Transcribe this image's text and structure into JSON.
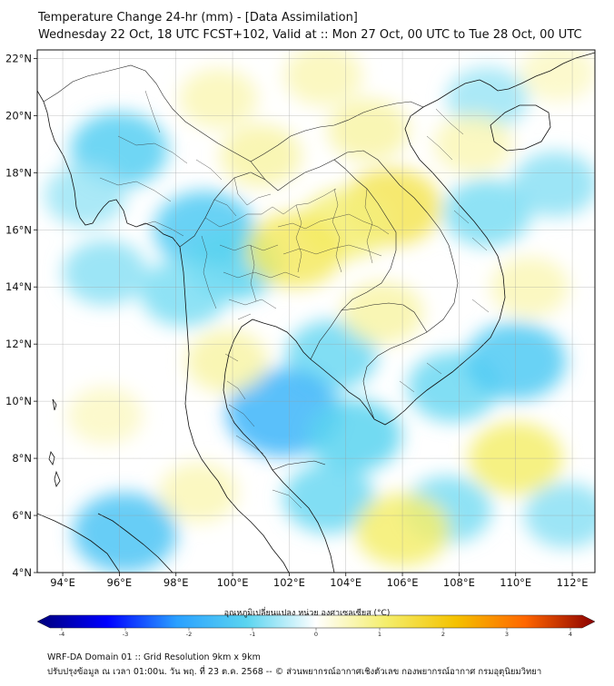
{
  "header": {
    "title": "Temperature Change 24-hr (mm) - [Data Assimilation]",
    "subtitle": "Wednesday 22 Oct, 18 UTC FCST+102, Valid at :: Mon 27 Oct, 00 UTC to Tue 28 Oct, 00 UTC"
  },
  "axes": {
    "lat_labels": [
      "22°N",
      "20°N",
      "18°N",
      "16°N",
      "14°N",
      "12°N",
      "10°N",
      "8°N",
      "6°N",
      "4°N"
    ],
    "lon_labels": [
      "94°E",
      "96°E",
      "98°E",
      "100°E",
      "102°E",
      "104°E",
      "106°E",
      "108°E",
      "110°E",
      "112°E"
    ],
    "lat_range": [
      4,
      22.3
    ],
    "lon_range": [
      93.1,
      112.8
    ]
  },
  "colorbar": {
    "label": "อุณหภูมิเปลี่ยนแปลง หน่วย องศาเซลเซียส (°C)",
    "ticks": [
      "-4",
      "-3",
      "-2",
      "-1",
      "0",
      "1",
      "2",
      "3",
      "4"
    ],
    "min": -4,
    "max": 4,
    "colors": [
      "#00007a",
      "#0000ff",
      "#2aa0ff",
      "#5ad4f0",
      "#ffffff",
      "#f4ee6c",
      "#f4c200",
      "#ff6600",
      "#8b0000"
    ]
  },
  "footer": {
    "line1": "WRF-DA Domain 01 :: Grid Resolution 9km x 9km",
    "line2": "ปรับปรุงข้อมูล ณ เวลา 01:00น. วัน พฤ. ที่ 23 ต.ค. 2568 -- © ส่วนพยากรณ์อากาศเชิงตัวเลข กองพยากรณ์อากาศ กรมอุตุนิยมวิทยา"
  },
  "field_blobs": [
    {
      "lon": 96.0,
      "lat": 18.8,
      "v": -1.1
    },
    {
      "lon": 94.8,
      "lat": 17.2,
      "v": -0.6
    },
    {
      "lon": 95.5,
      "lat": 14.5,
      "v": -0.7
    },
    {
      "lon": 99.0,
      "lat": 16.0,
      "v": -1.2
    },
    {
      "lon": 100.0,
      "lat": 14.8,
      "v": -1.0
    },
    {
      "lon": 98.3,
      "lat": 13.8,
      "v": -0.8
    },
    {
      "lon": 103.5,
      "lat": 11.6,
      "v": -0.9
    },
    {
      "lon": 101.8,
      "lat": 9.6,
      "v": -1.6
    },
    {
      "lon": 104.3,
      "lat": 8.8,
      "v": -1.0
    },
    {
      "lon": 107.8,
      "lat": 10.5,
      "v": -0.9
    },
    {
      "lon": 110.0,
      "lat": 11.4,
      "v": -1.2
    },
    {
      "lon": 109.0,
      "lat": 16.6,
      "v": -0.8
    },
    {
      "lon": 111.4,
      "lat": 17.6,
      "v": -0.7
    },
    {
      "lon": 109.0,
      "lat": 20.6,
      "v": -0.6
    },
    {
      "lon": 96.2,
      "lat": 5.4,
      "v": -1.3
    },
    {
      "lon": 103.4,
      "lat": 6.6,
      "v": -0.9
    },
    {
      "lon": 107.6,
      "lat": 6.2,
      "v": -0.8
    },
    {
      "lon": 111.8,
      "lat": 6.0,
      "v": -0.7
    },
    {
      "lon": 105.6,
      "lat": 16.8,
      "v": 1.2
    },
    {
      "lon": 104.0,
      "lat": 16.2,
      "v": 0.9
    },
    {
      "lon": 102.2,
      "lat": 15.3,
      "v": 1.1
    },
    {
      "lon": 101.0,
      "lat": 18.6,
      "v": 0.6
    },
    {
      "lon": 104.8,
      "lat": 19.5,
      "v": 0.6
    },
    {
      "lon": 103.2,
      "lat": 21.4,
      "v": 0.5
    },
    {
      "lon": 110.0,
      "lat": 8.0,
      "v": 1.0
    },
    {
      "lon": 106.0,
      "lat": 5.5,
      "v": 1.0
    },
    {
      "lon": 105.3,
      "lat": 13.1,
      "v": 0.6
    },
    {
      "lon": 99.8,
      "lat": 11.4,
      "v": 0.6
    },
    {
      "lon": 98.8,
      "lat": 6.8,
      "v": 0.5
    },
    {
      "lon": 95.5,
      "lat": 9.5,
      "v": 0.4
    },
    {
      "lon": 99.5,
      "lat": 20.6,
      "v": 0.5
    },
    {
      "lon": 110.5,
      "lat": 14.0,
      "v": 0.5
    },
    {
      "lon": 111.5,
      "lat": 21.5,
      "v": 0.4
    },
    {
      "lon": 108.5,
      "lat": 19.0,
      "v": 0.5
    }
  ]
}
